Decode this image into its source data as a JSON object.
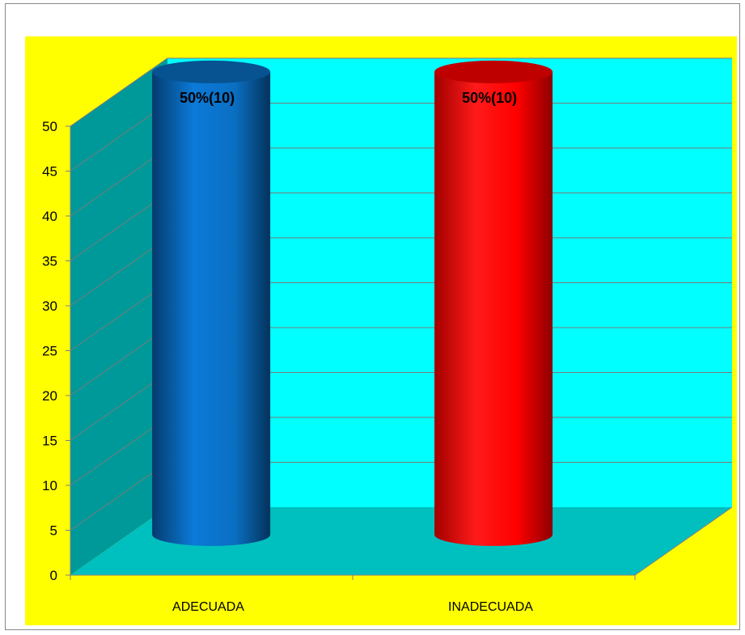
{
  "chart_data": {
    "type": "bar",
    "categories": [
      "ADECUADA",
      "INADECUADA"
    ],
    "values": [
      50,
      50
    ],
    "data_labels": [
      "50%(10)",
      "50%(10)"
    ],
    "ylim": [
      0,
      50
    ],
    "y_ticks": [
      0,
      5,
      10,
      15,
      20,
      25,
      30,
      35,
      40,
      45,
      50
    ],
    "title": "",
    "xlabel": "",
    "ylabel": "",
    "grid": true,
    "legend": "none",
    "style": "3d-cylinder",
    "colors": {
      "bars": [
        "#0a6fc2",
        "#ff0000"
      ],
      "background": "#ffff00",
      "back_wall": "#00ffff",
      "side_wall": "#009999",
      "floor": "#00bfbf"
    }
  }
}
